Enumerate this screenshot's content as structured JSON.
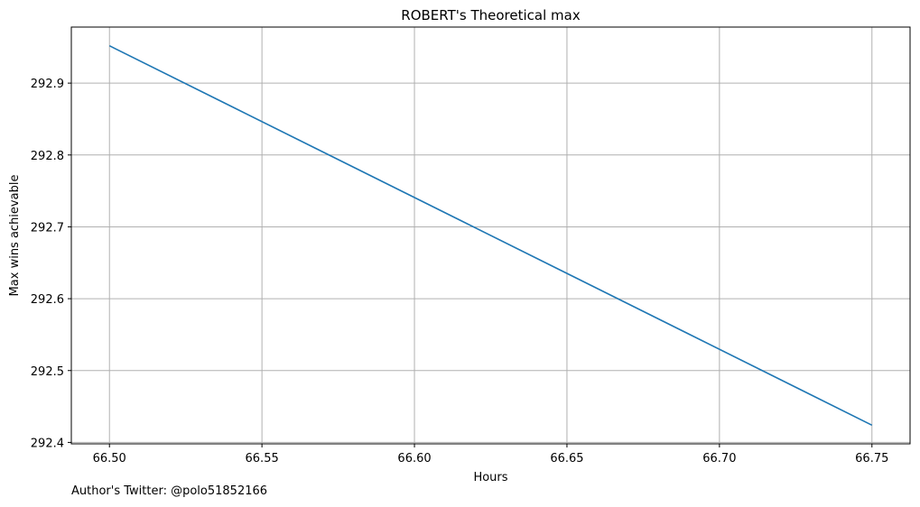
{
  "chart_data": {
    "type": "line",
    "title": "ROBERT's Theoretical max",
    "xlabel": "Hours",
    "ylabel": "Max wins achievable",
    "x": [
      66.5,
      66.75
    ],
    "series": [
      {
        "values": [
          292.952,
          292.424
        ],
        "color": "#1f77b4"
      }
    ],
    "xticks": [
      "66.50",
      "66.55",
      "66.60",
      "66.65",
      "66.70",
      "66.75"
    ],
    "yticks": [
      "292.4",
      "292.5",
      "292.6",
      "292.7",
      "292.8",
      "292.9"
    ],
    "xlim": [
      66.4875,
      66.7625
    ],
    "ylim": [
      292.398,
      292.978
    ],
    "grid": true
  },
  "footnote": "Author's Twitter: @polo51852166"
}
